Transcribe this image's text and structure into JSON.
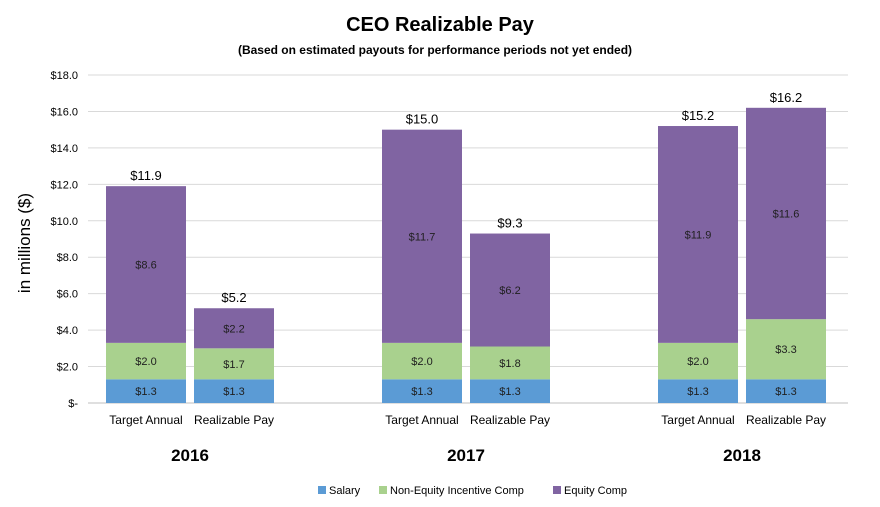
{
  "chart_data": {
    "type": "bar",
    "stacked": true,
    "title": "CEO Realizable Pay",
    "subtitle": "(Based on estimated payouts for performance periods not yet ended)",
    "ylabel": "in millions ($)",
    "ylim": [
      0,
      18
    ],
    "yticks": [
      "$-",
      "$2.0",
      "$4.0",
      "$6.0",
      "$8.0",
      "$10.0",
      "$12.0",
      "$14.0",
      "$16.0",
      "$18.0"
    ],
    "grid": true,
    "legend_position": "bottom",
    "groups": [
      {
        "year": "2016",
        "bars": [
          {
            "category": "Target Annual",
            "values": [
              1.3,
              2.0,
              8.6
            ],
            "labels": [
              "$1.3",
              "$2.0",
              "$8.6"
            ],
            "total": 11.9,
            "total_label": "$11.9"
          },
          {
            "category": "Realizable Pay",
            "values": [
              1.3,
              1.7,
              2.2
            ],
            "labels": [
              "$1.3",
              "$1.7",
              "$2.2"
            ],
            "total": 5.2,
            "total_label": "$5.2"
          }
        ]
      },
      {
        "year": "2017",
        "bars": [
          {
            "category": "Target Annual",
            "values": [
              1.3,
              2.0,
              11.7
            ],
            "labels": [
              "$1.3",
              "$2.0",
              "$11.7"
            ],
            "total": 15.0,
            "total_label": "$15.0"
          },
          {
            "category": "Realizable Pay",
            "values": [
              1.3,
              1.8,
              6.2
            ],
            "labels": [
              "$1.3",
              "$1.8",
              "$6.2"
            ],
            "total": 9.3,
            "total_label": "$9.3"
          }
        ]
      },
      {
        "year": "2018",
        "bars": [
          {
            "category": "Target Annual",
            "values": [
              1.3,
              2.0,
              11.9
            ],
            "labels": [
              "$1.3",
              "$2.0",
              "$11.9"
            ],
            "total": 15.2,
            "total_label": "$15.2"
          },
          {
            "category": "Realizable Pay",
            "values": [
              1.3,
              3.3,
              11.6
            ],
            "labels": [
              "$1.3",
              "$3.3",
              "$11.6"
            ],
            "total": 16.2,
            "total_label": "$16.2"
          }
        ]
      }
    ],
    "series": [
      {
        "name": "Salary",
        "color": "#5b9bd5"
      },
      {
        "name": "Non-Equity Incentive Comp",
        "color": "#a9d18e"
      },
      {
        "name": "Equity Comp",
        "color": "#8064a2"
      }
    ]
  }
}
